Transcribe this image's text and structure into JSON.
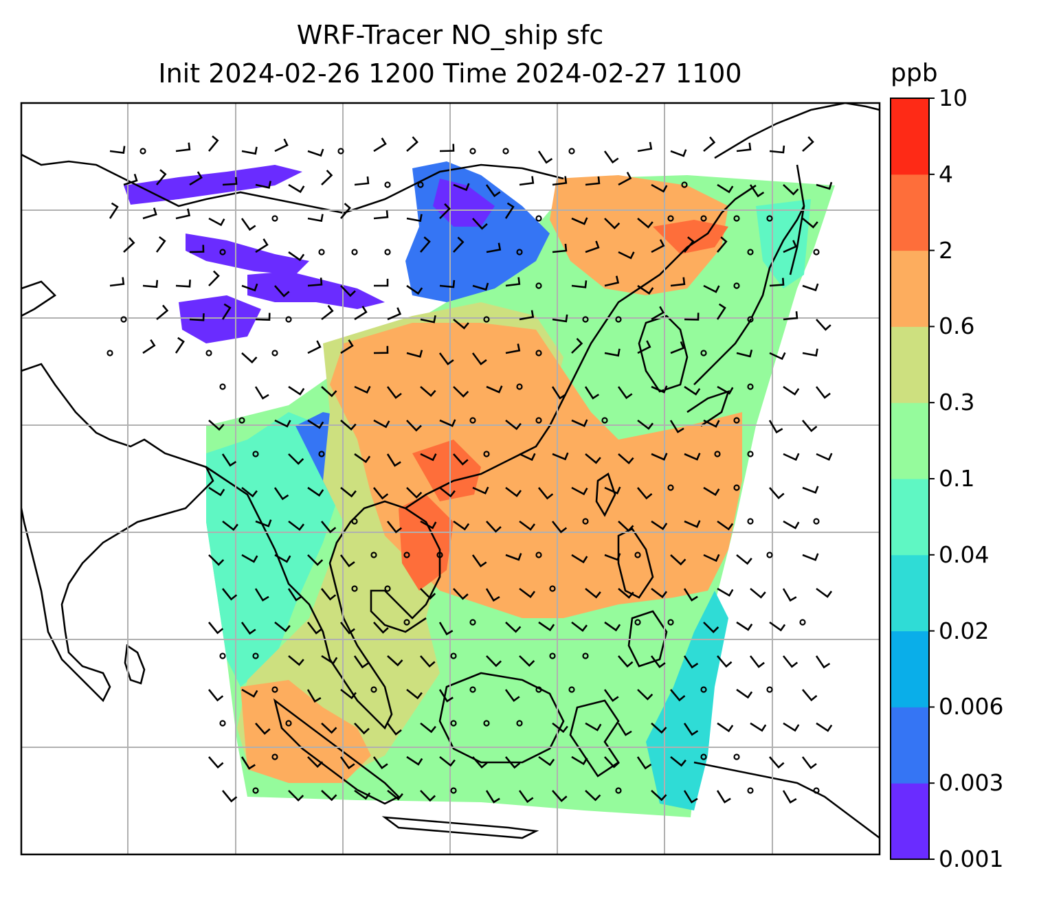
{
  "title_line1": "WRF-Tracer NO_ship sfc",
  "title_line2": "Init 2024-02-26 1200 Time 2024-02-27 1100",
  "colorbar": {
    "unit": "ppb",
    "levels": [
      "0.001",
      "0.003",
      "0.006",
      "0.02",
      "0.04",
      "0.1",
      "0.3",
      "0.6",
      "2",
      "4",
      "10"
    ],
    "colors": [
      "#6a2cff",
      "#3575f4",
      "#0aaee9",
      "#2fdcd6",
      "#5ff7c3",
      "#95fb9c",
      "#cde07f",
      "#fdad5e",
      "#fe6e3a",
      "#fe2a16"
    ]
  },
  "map": {
    "grid": "on",
    "field": "NO_ship surface tracer concentration",
    "wind_barbs": true
  }
}
